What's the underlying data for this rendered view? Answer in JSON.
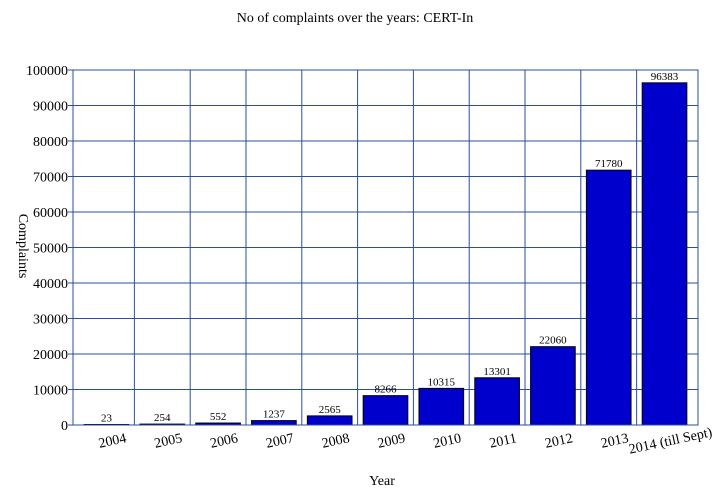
{
  "chart_data": {
    "type": "bar",
    "title": "No of complaints over the years: CERT-In",
    "xlabel": "Year",
    "ylabel": "Complaints",
    "categories": [
      "2004",
      "2005",
      "2006",
      "2007",
      "2008",
      "2009",
      "2010",
      "2011",
      "2012",
      "2013",
      "2014 (till Sept)"
    ],
    "values": [
      23,
      254,
      552,
      1237,
      2565,
      8266,
      10315,
      13301,
      22060,
      71780,
      96383
    ],
    "ylim": [
      0,
      100000
    ],
    "yticks": [
      "0",
      "10000",
      "20000",
      "30000",
      "40000",
      "50000",
      "60000",
      "70000",
      "80000",
      "90000",
      "100000"
    ],
    "grid": true,
    "legend": "none",
    "colors": {
      "bar": "#0000cc",
      "grid": "#2a4f9c"
    }
  }
}
